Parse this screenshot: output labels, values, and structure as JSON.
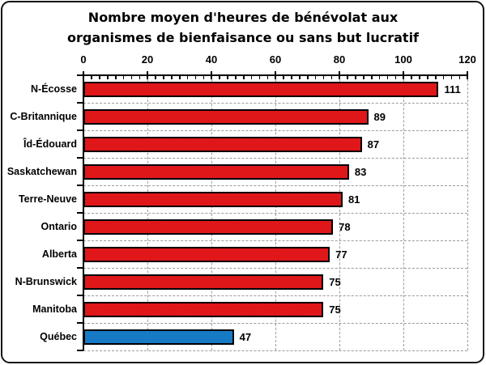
{
  "chart_data": {
    "type": "bar",
    "orientation": "horizontal",
    "title_line1": "Nombre moyen d'heures de bénévolat aux",
    "title_line2": "organismes de bienfaisance ou sans but lucratif",
    "categories": [
      "N-Écosse",
      "C-Britannique",
      "Îd-Édouard",
      "Saskatchewan",
      "Terre-Neuve",
      "Ontario",
      "Alberta",
      "N-Brunswick",
      "Manitoba",
      "Québec"
    ],
    "values": [
      111,
      89,
      87,
      83,
      81,
      78,
      77,
      75,
      75,
      47
    ],
    "bar_color_keys": [
      "red",
      "red",
      "red",
      "red",
      "red",
      "red",
      "red",
      "red",
      "red",
      "blue"
    ],
    "palette": {
      "red": {
        "base": "#e8141b",
        "light": "#fb2323",
        "dark": "#c40a10"
      },
      "blue": {
        "base": "#1680cc",
        "light": "#2191e2",
        "dark": "#0c63a8"
      }
    },
    "xlim": [
      0,
      120
    ],
    "xticks": [
      0,
      20,
      40,
      60,
      80,
      100,
      120
    ],
    "minor_tick_unit": 2.5,
    "grid_style": "dashed",
    "gridline_color": "#9c9c9c",
    "axis_color": "#000000",
    "frame_border_color": "#141414",
    "background_color": "#ffffff",
    "legend": "none",
    "value_labels_shown": true
  }
}
